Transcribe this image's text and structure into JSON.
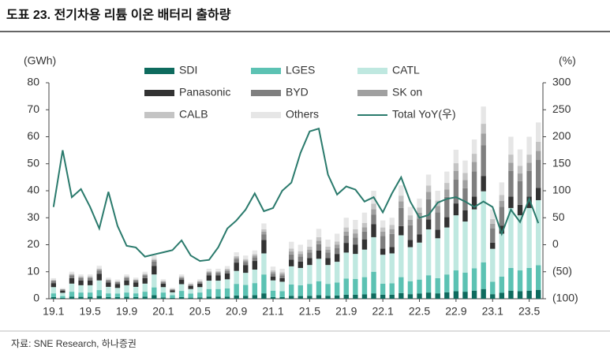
{
  "chart_data": {
    "type": "bar",
    "stacked": true,
    "title": "도표 23. 전기차용 리튬 이온 배터리 출하량",
    "source": "자료: SNE Research, 하나증권",
    "y_label": "(GWh)",
    "y2_label": "(%)",
    "categories": [
      "19.1",
      null,
      null,
      null,
      "19.5",
      null,
      null,
      null,
      "19.9",
      null,
      null,
      null,
      "20.1",
      null,
      null,
      null,
      "20.5",
      null,
      null,
      null,
      "20.9",
      null,
      null,
      null,
      "21.1",
      null,
      null,
      null,
      "21.5",
      null,
      null,
      null,
      "21.9",
      null,
      null,
      null,
      "22.1",
      null,
      null,
      null,
      "22.5",
      null,
      null,
      null,
      "22.9",
      null,
      null,
      null,
      "23.1",
      null,
      null,
      null,
      "23.5",
      null
    ],
    "ylim": [
      0,
      80
    ],
    "yticks": [
      0,
      10,
      20,
      30,
      40,
      50,
      60,
      70,
      80
    ],
    "y2lim": [
      -100,
      300
    ],
    "y2ticks": [
      {
        "value": -100,
        "label": "(100)"
      },
      {
        "value": -50,
        "label": "(50)"
      },
      0,
      50,
      100,
      150,
      200,
      250,
      300
    ],
    "grid": false,
    "series": [
      {
        "name": "SDI",
        "color": "#0e6b5e",
        "values": [
          0.6,
          0.3,
          0.8,
          0.7,
          0.7,
          1.0,
          0.6,
          0.6,
          0.7,
          0.6,
          0.8,
          1.3,
          0.5,
          0.3,
          0.6,
          0.4,
          0.5,
          0.8,
          0.8,
          0.8,
          1.2,
          1.1,
          1.3,
          2.0,
          0.6,
          0.6,
          1.1,
          1.0,
          1.1,
          1.3,
          1.1,
          1.2,
          1.5,
          1.5,
          1.6,
          2.0,
          1.5,
          1.5,
          2.1,
          1.7,
          1.9,
          2.3,
          2.0,
          2.4,
          2.8,
          2.6,
          3.0,
          3.6,
          1.7,
          2.2,
          3.0,
          2.8,
          3.0,
          3.3
        ]
      },
      {
        "name": "LGES",
        "color": "#5cc2b3",
        "values": [
          1.4,
          0.7,
          1.8,
          1.6,
          1.6,
          2.2,
          1.4,
          1.3,
          1.6,
          1.4,
          1.8,
          2.9,
          1.8,
          1.0,
          2.3,
          1.5,
          1.8,
          2.8,
          2.8,
          3.0,
          4.3,
          4.0,
          4.5,
          7.0,
          2.4,
          2.2,
          4.2,
          4.0,
          4.4,
          5.2,
          4.4,
          4.8,
          6.0,
          5.8,
          6.4,
          8.0,
          4.1,
          4.2,
          5.9,
          4.8,
          5.2,
          6.4,
          5.6,
          6.6,
          7.7,
          7.1,
          8.3,
          9.9,
          4.6,
          6.0,
          8.4,
          7.7,
          8.4,
          9.1
        ]
      },
      {
        "name": "CATL",
        "color": "#bfe8e0",
        "values": [
          2.3,
          1.2,
          3.0,
          2.7,
          2.7,
          3.6,
          2.4,
          2.1,
          2.7,
          2.4,
          3.0,
          4.8,
          2.0,
          1.1,
          2.5,
          1.7,
          2.0,
          3.1,
          3.1,
          3.4,
          4.8,
          4.5,
          5.0,
          7.8,
          3.8,
          3.5,
          6.7,
          6.4,
          7.0,
          8.3,
          7.0,
          7.7,
          9.6,
          9.3,
          10.2,
          12.8,
          10.7,
          11.1,
          15.5,
          12.6,
          13.7,
          17.0,
          14.8,
          17.4,
          20.4,
          18.9,
          21.8,
          26.3,
          12.2,
          15.9,
          22.2,
          20.4,
          22.2,
          24.1
        ]
      },
      {
        "name": "Panasonic",
        "color": "#333333",
        "values": [
          1.5,
          0.8,
          2.0,
          1.8,
          1.8,
          2.4,
          1.6,
          1.4,
          1.8,
          1.6,
          2.0,
          3.2,
          1.3,
          0.7,
          1.6,
          1.1,
          1.3,
          2.0,
          2.0,
          2.2,
          3.1,
          2.9,
          3.2,
          5.0,
          1.4,
          1.3,
          2.5,
          2.4,
          2.6,
          3.1,
          2.6,
          2.9,
          3.6,
          3.5,
          3.8,
          4.8,
          2.3,
          2.4,
          3.4,
          2.7,
          3.0,
          3.7,
          3.2,
          3.8,
          4.4,
          4.1,
          4.7,
          5.7,
          2.3,
          3.0,
          4.2,
          3.9,
          4.2,
          4.6
        ]
      },
      {
        "name": "BYD",
        "color": "#7f7f7f",
        "values": [
          0.8,
          0.4,
          1.0,
          0.9,
          0.9,
          1.2,
          0.8,
          0.7,
          0.9,
          0.8,
          1.0,
          1.6,
          0.5,
          0.3,
          0.6,
          0.4,
          0.5,
          0.8,
          0.8,
          0.8,
          1.2,
          1.1,
          1.3,
          2.0,
          1.1,
          1.0,
          1.9,
          1.8,
          2.0,
          2.3,
          2.0,
          2.2,
          2.7,
          2.6,
          2.9,
          3.6,
          4.6,
          4.8,
          6.7,
          5.4,
          5.9,
          7.4,
          6.4,
          7.5,
          8.8,
          8.2,
          9.4,
          11.4,
          5.3,
          6.9,
          9.6,
          8.8,
          9.6,
          10.4
        ]
      },
      {
        "name": "SK on",
        "color": "#a0a0a0",
        "values": [
          0.2,
          0.1,
          0.3,
          0.3,
          0.3,
          0.4,
          0.2,
          0.2,
          0.3,
          0.2,
          0.3,
          0.5,
          0.3,
          0.2,
          0.4,
          0.2,
          0.3,
          0.4,
          0.4,
          0.5,
          0.7,
          0.6,
          0.7,
          1.1,
          0.6,
          0.6,
          1.1,
          1.0,
          1.1,
          1.3,
          1.1,
          1.2,
          1.5,
          1.5,
          1.6,
          2.0,
          1.7,
          1.8,
          2.5,
          2.0,
          2.2,
          2.8,
          2.4,
          2.8,
          3.3,
          3.1,
          3.5,
          4.3,
          1.7,
          2.2,
          3.0,
          2.8,
          3.0,
          3.3
        ]
      },
      {
        "name": "CALB",
        "color": "#c4c4c4",
        "values": [
          0.2,
          0.1,
          0.3,
          0.3,
          0.3,
          0.4,
          0.2,
          0.2,
          0.3,
          0.2,
          0.3,
          0.5,
          0.2,
          0.1,
          0.3,
          0.2,
          0.2,
          0.3,
          0.3,
          0.4,
          0.5,
          0.5,
          0.5,
          0.8,
          0.6,
          0.6,
          1.1,
          1.0,
          1.1,
          1.3,
          1.1,
          1.2,
          1.5,
          1.5,
          1.6,
          2.0,
          1.5,
          1.5,
          2.1,
          1.7,
          1.9,
          2.3,
          2.0,
          2.4,
          2.8,
          2.6,
          3.0,
          3.6,
          1.7,
          2.2,
          3.0,
          2.8,
          3.0,
          3.3
        ]
      },
      {
        "name": "Others",
        "color": "#e6e6e6",
        "values": [
          0.6,
          0.3,
          0.8,
          0.7,
          0.7,
          1.0,
          0.6,
          0.6,
          0.7,
          0.6,
          0.8,
          1.3,
          0.6,
          0.3,
          0.7,
          0.5,
          0.6,
          0.9,
          0.9,
          1.0,
          1.4,
          1.3,
          1.4,
          2.2,
          1.4,
          1.3,
          2.5,
          2.4,
          2.6,
          3.1,
          2.6,
          2.9,
          3.6,
          3.5,
          3.8,
          4.8,
          2.6,
          2.7,
          3.8,
          3.1,
          3.3,
          4.1,
          3.6,
          4.2,
          5.0,
          4.6,
          5.3,
          6.4,
          3.6,
          4.7,
          6.6,
          6.1,
          6.6,
          7.2
        ]
      },
      {
        "name": "Total YoY(우)",
        "color": "#2a7a6c",
        "type": "line",
        "axis": "y2",
        "values": [
          70,
          175,
          88,
          103,
          70,
          30,
          98,
          35,
          -2,
          -5,
          -22,
          -18,
          -14,
          -10,
          8,
          -20,
          -30,
          -28,
          -5,
          30,
          45,
          65,
          95,
          62,
          68,
          100,
          115,
          170,
          210,
          215,
          130,
          93,
          108,
          102,
          80,
          88,
          60,
          95,
          125,
          80,
          50,
          55,
          78,
          85,
          88,
          80,
          70,
          80,
          70,
          20,
          65,
          42,
          85,
          40
        ]
      }
    ]
  }
}
